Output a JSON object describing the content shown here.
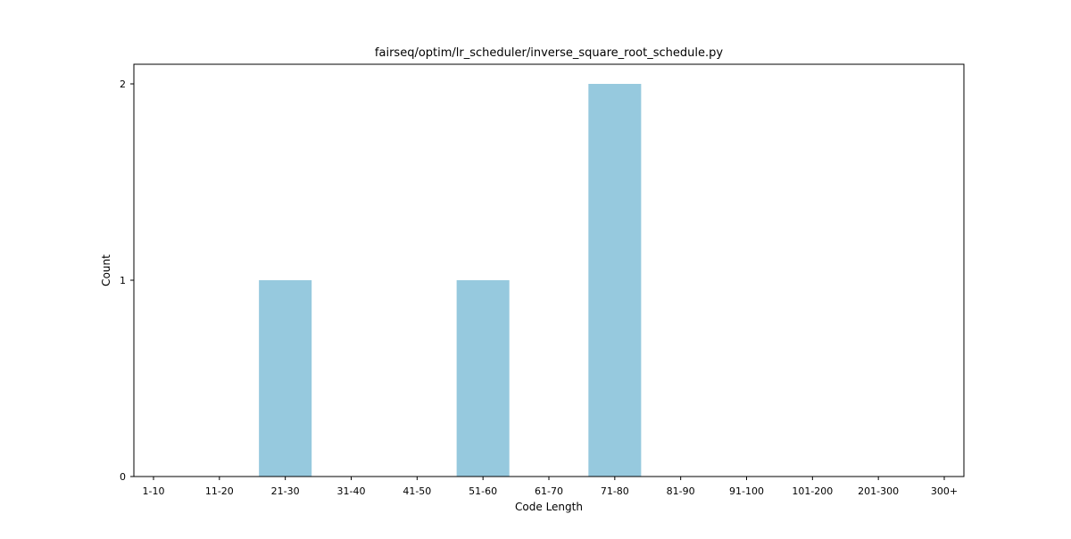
{
  "chart_data": {
    "type": "bar",
    "title": "fairseq/optim/lr_scheduler/inverse_square_root_schedule.py",
    "xlabel": "Code Length",
    "ylabel": "Count",
    "categories": [
      "1-10",
      "11-20",
      "21-30",
      "31-40",
      "41-50",
      "51-60",
      "61-70",
      "71-80",
      "81-90",
      "91-100",
      "101-200",
      "201-300",
      "300+"
    ],
    "values": [
      0,
      0,
      1,
      0,
      0,
      1,
      0,
      2,
      0,
      0,
      0,
      0,
      0
    ],
    "ylim": [
      0,
      2.1
    ],
    "yticks": [
      "0",
      "1",
      "2"
    ],
    "grid": false,
    "bar_color": "#96c9de"
  }
}
